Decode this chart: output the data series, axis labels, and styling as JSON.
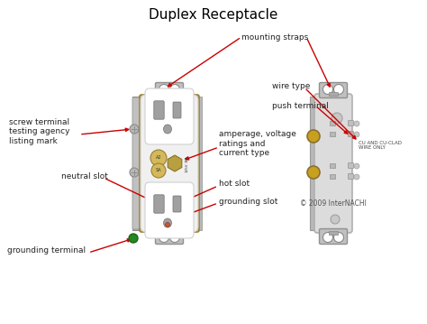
{
  "title": "Duplex Receptacle",
  "title_fontsize": 11,
  "background_color": "#ffffff",
  "labels": {
    "mounting_straps": "mounting straps",
    "wire_type": "wire type",
    "push_terminal": "push terminal",
    "screw_terminal": "screw terminal\ntesting agency\nlisting mark",
    "amperage": "amperage, voltage\nratings and\ncurrent type",
    "neutral_slot": "neutral slot",
    "hot_slot": "hot slot",
    "grounding_slot": "grounding slot",
    "grounding_terminal": "grounding terminal",
    "copyright": "© 2009 InterNACHI",
    "wire_label": "CU AND CU-CLAD\nWIRE ONLY"
  },
  "arrow_color": "#cc0000",
  "outlet_body_color": "#d4b85a",
  "outlet_face_color": "#f0f0f0",
  "side_view_color": "#dcdcdc",
  "terminal_color": "#c8a020",
  "text_color": "#222222",
  "label_fontsize": 6.5
}
